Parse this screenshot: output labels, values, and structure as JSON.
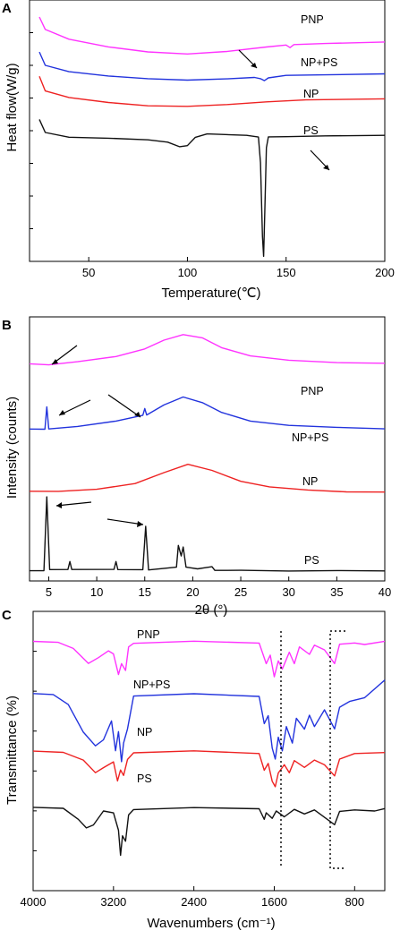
{
  "chart_data": [
    {
      "panel": "A",
      "type": "line",
      "xlabel": "Temperature(℃)",
      "ylabel": "Heat flow(W/g)",
      "xlim": [
        20,
        200
      ],
      "xticks": [
        50,
        100,
        150,
        200
      ],
      "yticks_labeled": false,
      "series": [
        {
          "name": "PNP",
          "color": "#ff33ff",
          "points": [
            [
              25,
              3.55
            ],
            [
              28,
              3.3
            ],
            [
              40,
              3.1
            ],
            [
              60,
              2.95
            ],
            [
              80,
              2.85
            ],
            [
              100,
              2.8
            ],
            [
              120,
              2.86
            ],
            [
              140,
              2.95
            ],
            [
              150,
              2.99
            ],
            [
              152,
              2.94
            ],
            [
              154,
              3.0
            ],
            [
              170,
              3.02
            ],
            [
              200,
              3.05
            ]
          ]
        },
        {
          "name": "NP+PS",
          "color": "#2233dd",
          "points": [
            [
              25,
              2.85
            ],
            [
              28,
              2.58
            ],
            [
              40,
              2.45
            ],
            [
              60,
              2.36
            ],
            [
              80,
              2.3
            ],
            [
              100,
              2.28
            ],
            [
              120,
              2.3
            ],
            [
              134,
              2.33
            ],
            [
              137,
              2.3
            ],
            [
              139,
              2.26
            ],
            [
              141,
              2.32
            ],
            [
              150,
              2.37
            ],
            [
              170,
              2.38
            ],
            [
              200,
              2.4
            ]
          ]
        },
        {
          "name": "NP",
          "color": "#ee2222",
          "points": [
            [
              25,
              2.35
            ],
            [
              28,
              2.05
            ],
            [
              40,
              1.92
            ],
            [
              60,
              1.82
            ],
            [
              80,
              1.76
            ],
            [
              100,
              1.74
            ],
            [
              120,
              1.78
            ],
            [
              140,
              1.84
            ],
            [
              160,
              1.87
            ],
            [
              200,
              1.9
            ]
          ]
        },
        {
          "name": "PS",
          "color": "#111111",
          "points": [
            [
              25,
              1.48
            ],
            [
              28,
              1.22
            ],
            [
              40,
              1.12
            ],
            [
              60,
              1.1
            ],
            [
              80,
              1.06
            ],
            [
              90,
              1.02
            ],
            [
              96,
              0.92
            ],
            [
              100,
              0.95
            ],
            [
              104,
              1.12
            ],
            [
              110,
              1.18
            ],
            [
              130,
              1.16
            ],
            [
              136,
              1.12
            ],
            [
              137,
              0.6
            ],
            [
              138,
              -0.9
            ],
            [
              138.6,
              -1.3
            ],
            [
              139.2,
              -0.4
            ],
            [
              140,
              0.9
            ],
            [
              141,
              1.12
            ],
            [
              150,
              1.13
            ],
            [
              170,
              1.14
            ],
            [
              200,
              1.15
            ]
          ]
        }
      ]
    },
    {
      "panel": "B",
      "type": "line",
      "xlabel": "2θ (°)",
      "ylabel": "Intensity (counts)",
      "xlim": [
        3,
        40
      ],
      "xticks": [
        5,
        10,
        15,
        20,
        25,
        30,
        35,
        40
      ],
      "yticks_labeled": false,
      "series": [
        {
          "name": "PNP",
          "color": "#ff33ff",
          "points": [
            [
              3,
              3.72
            ],
            [
              5,
              3.7
            ],
            [
              8,
              3.75
            ],
            [
              12,
              3.84
            ],
            [
              15,
              3.98
            ],
            [
              17,
              4.14
            ],
            [
              19,
              4.24
            ],
            [
              21,
              4.18
            ],
            [
              23,
              4.0
            ],
            [
              26,
              3.85
            ],
            [
              30,
              3.78
            ],
            [
              35,
              3.74
            ],
            [
              40,
              3.72
            ]
          ]
        },
        {
          "name": "NP+PS",
          "color": "#2233dd",
          "points": [
            [
              3,
              2.55
            ],
            [
              4.6,
              2.55
            ],
            [
              4.8,
              2.95
            ],
            [
              5.0,
              2.55
            ],
            [
              8,
              2.6
            ],
            [
              12,
              2.7
            ],
            [
              14.8,
              2.8
            ],
            [
              15.0,
              2.92
            ],
            [
              15.2,
              2.8
            ],
            [
              17,
              2.98
            ],
            [
              19,
              3.12
            ],
            [
              21,
              3.02
            ],
            [
              23,
              2.85
            ],
            [
              26,
              2.7
            ],
            [
              30,
              2.62
            ],
            [
              35,
              2.58
            ],
            [
              40,
              2.56
            ]
          ]
        },
        {
          "name": "NP",
          "color": "#ee2222",
          "points": [
            [
              3,
              1.45
            ],
            [
              6,
              1.45
            ],
            [
              10,
              1.48
            ],
            [
              14,
              1.58
            ],
            [
              17,
              1.78
            ],
            [
              19.5,
              1.93
            ],
            [
              22,
              1.82
            ],
            [
              25,
              1.62
            ],
            [
              28,
              1.52
            ],
            [
              32,
              1.47
            ],
            [
              36,
              1.44
            ],
            [
              40,
              1.43
            ]
          ]
        },
        {
          "name": "PS",
          "color": "#111111",
          "points": [
            [
              3,
              0.03
            ],
            [
              4.5,
              0.03
            ],
            [
              4.8,
              1.35
            ],
            [
              5.1,
              0.05
            ],
            [
              7.0,
              0.05
            ],
            [
              7.2,
              0.2
            ],
            [
              7.4,
              0.05
            ],
            [
              11.8,
              0.05
            ],
            [
              12.0,
              0.2
            ],
            [
              12.2,
              0.05
            ],
            [
              14.8,
              0.05
            ],
            [
              15.1,
              0.82
            ],
            [
              15.4,
              0.05
            ],
            [
              18.3,
              0.1
            ],
            [
              18.5,
              0.48
            ],
            [
              18.8,
              0.3
            ],
            [
              19.0,
              0.45
            ],
            [
              19.3,
              0.1
            ],
            [
              20.5,
              0.06
            ],
            [
              22,
              0.1
            ],
            [
              22.3,
              0.04
            ],
            [
              25,
              0.04
            ],
            [
              30,
              0.03
            ],
            [
              35,
              0.03
            ],
            [
              40,
              0.03
            ]
          ]
        }
      ]
    },
    {
      "panel": "C",
      "type": "line",
      "xlabel": "Wavenumbers (cm⁻¹)",
      "ylabel": "Transmittance (%)",
      "xlim": [
        4000,
        500
      ],
      "xticks": [
        4000,
        3200,
        2400,
        1600,
        800
      ],
      "yticks_labeled": false,
      "series": [
        {
          "name": "PNP",
          "color": "#ff33ff",
          "points": [
            [
              4000,
              3.95
            ],
            [
              3750,
              3.93
            ],
            [
              3600,
              3.82
            ],
            [
              3450,
              3.55
            ],
            [
              3350,
              3.65
            ],
            [
              3250,
              3.78
            ],
            [
              3200,
              3.72
            ],
            [
              3150,
              3.35
            ],
            [
              3120,
              3.55
            ],
            [
              3080,
              3.42
            ],
            [
              3050,
              3.85
            ],
            [
              3000,
              3.92
            ],
            [
              2400,
              3.95
            ],
            [
              1750,
              3.92
            ],
            [
              1680,
              3.55
            ],
            [
              1640,
              3.7
            ],
            [
              1600,
              3.3
            ],
            [
              1560,
              3.6
            ],
            [
              1520,
              3.45
            ],
            [
              1450,
              3.75
            ],
            [
              1400,
              3.55
            ],
            [
              1350,
              3.85
            ],
            [
              1250,
              3.72
            ],
            [
              1200,
              3.88
            ],
            [
              1100,
              3.8
            ],
            [
              1000,
              3.55
            ],
            [
              950,
              3.9
            ],
            [
              800,
              3.92
            ],
            [
              700,
              3.9
            ],
            [
              500,
              3.95
            ]
          ]
        },
        {
          "name": "NP+PS",
          "color": "#2233dd",
          "points": [
            [
              4000,
              3.0
            ],
            [
              3800,
              2.98
            ],
            [
              3650,
              2.8
            ],
            [
              3500,
              2.3
            ],
            [
              3380,
              2.05
            ],
            [
              3300,
              2.15
            ],
            [
              3220,
              2.5
            ],
            [
              3180,
              1.95
            ],
            [
              3150,
              2.3
            ],
            [
              3120,
              1.75
            ],
            [
              3100,
              2.1
            ],
            [
              3060,
              2.35
            ],
            [
              3000,
              2.95
            ],
            [
              2400,
              3.0
            ],
            [
              1750,
              2.95
            ],
            [
              1700,
              2.45
            ],
            [
              1660,
              2.6
            ],
            [
              1620,
              2.0
            ],
            [
              1590,
              1.8
            ],
            [
              1560,
              2.2
            ],
            [
              1520,
              1.95
            ],
            [
              1480,
              2.4
            ],
            [
              1420,
              2.1
            ],
            [
              1380,
              2.55
            ],
            [
              1300,
              2.35
            ],
            [
              1250,
              2.6
            ],
            [
              1200,
              2.4
            ],
            [
              1100,
              2.7
            ],
            [
              1000,
              2.35
            ],
            [
              950,
              2.75
            ],
            [
              850,
              2.85
            ],
            [
              700,
              2.92
            ],
            [
              500,
              3.25
            ]
          ]
        },
        {
          "name": "NP",
          "color": "#ee2222",
          "points": [
            [
              4000,
              1.95
            ],
            [
              3700,
              1.93
            ],
            [
              3500,
              1.78
            ],
            [
              3380,
              1.55
            ],
            [
              3300,
              1.65
            ],
            [
              3200,
              1.75
            ],
            [
              3160,
              1.4
            ],
            [
              3130,
              1.6
            ],
            [
              3100,
              1.5
            ],
            [
              3060,
              1.8
            ],
            [
              3000,
              1.92
            ],
            [
              2400,
              1.95
            ],
            [
              1750,
              1.9
            ],
            [
              1700,
              1.6
            ],
            [
              1660,
              1.72
            ],
            [
              1620,
              1.4
            ],
            [
              1590,
              1.3
            ],
            [
              1560,
              1.55
            ],
            [
              1500,
              1.7
            ],
            [
              1450,
              1.55
            ],
            [
              1400,
              1.78
            ],
            [
              1300,
              1.65
            ],
            [
              1200,
              1.78
            ],
            [
              1100,
              1.7
            ],
            [
              1000,
              1.5
            ],
            [
              950,
              1.8
            ],
            [
              800,
              1.9
            ],
            [
              500,
              1.92
            ]
          ]
        },
        {
          "name": "PS",
          "color": "#111111",
          "points": [
            [
              4000,
              0.92
            ],
            [
              3700,
              0.9
            ],
            [
              3550,
              0.7
            ],
            [
              3470,
              0.55
            ],
            [
              3400,
              0.6
            ],
            [
              3300,
              0.85
            ],
            [
              3200,
              0.82
            ],
            [
              3150,
              0.5
            ],
            [
              3130,
              0.05
            ],
            [
              3110,
              0.4
            ],
            [
              3080,
              0.3
            ],
            [
              3050,
              0.78
            ],
            [
              3000,
              0.88
            ],
            [
              2400,
              0.92
            ],
            [
              1750,
              0.9
            ],
            [
              1700,
              0.7
            ],
            [
              1680,
              0.82
            ],
            [
              1620,
              0.72
            ],
            [
              1580,
              0.85
            ],
            [
              1500,
              0.75
            ],
            [
              1400,
              0.88
            ],
            [
              1300,
              0.8
            ],
            [
              1200,
              0.88
            ],
            [
              1000,
              0.6
            ],
            [
              950,
              0.85
            ],
            [
              800,
              0.88
            ],
            [
              600,
              0.85
            ],
            [
              500,
              0.9
            ]
          ]
        }
      ]
    }
  ]
}
